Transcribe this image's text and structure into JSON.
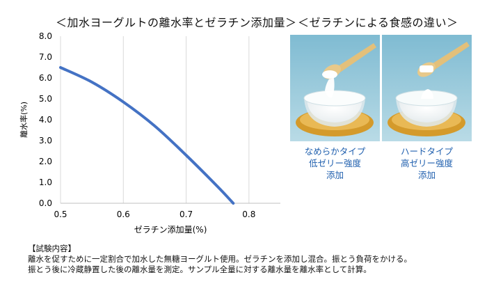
{
  "chart_title": "＜加水ヨーグルトの離水率とゼラチン添加量＞",
  "photo_title": "＜ゼラチンによる食感の違い＞",
  "chart_data": {
    "type": "line",
    "xlabel": "ゼラチン添加量(%)",
    "ylabel": "離水率(%)",
    "xlim": [
      0.5,
      0.85
    ],
    "ylim": [
      0,
      8
    ],
    "xticks": [
      "0.5",
      "0.6",
      "0.7",
      "0.8"
    ],
    "yticks": [
      "0.0",
      "1.0",
      "2.0",
      "3.0",
      "4.0",
      "5.0",
      "6.0",
      "7.0",
      "8.0"
    ],
    "grid": "vertical",
    "series": [
      {
        "x": [
          0.5,
          0.55,
          0.6,
          0.65,
          0.7,
          0.75,
          0.775
        ],
        "y": [
          6.5,
          5.8,
          4.85,
          3.7,
          2.3,
          0.8,
          0.0
        ],
        "color": "#4472c4"
      }
    ]
  },
  "photos": [
    {
      "icon": "soft-yogurt-photo-icon",
      "caption": [
        "なめらかタイプ",
        "低ゼリー強度",
        "添加"
      ]
    },
    {
      "icon": "hard-yogurt-photo-icon",
      "caption": [
        "ハードタイプ",
        "高ゼリー強度",
        "添加"
      ]
    }
  ],
  "note": {
    "heading": "【試験内容】",
    "line1": "離水を促すために一定割合で加水した無糖ヨーグルト使用。ゼラチンを添加し混合。振とう負荷をかける。",
    "line2": "振とう後に冷蔵静置した後の離水量を測定。サンプル全量に対する離水量を離水率として計算。"
  },
  "colors": {
    "caption": "#1f5fae",
    "line": "#4472c4"
  }
}
